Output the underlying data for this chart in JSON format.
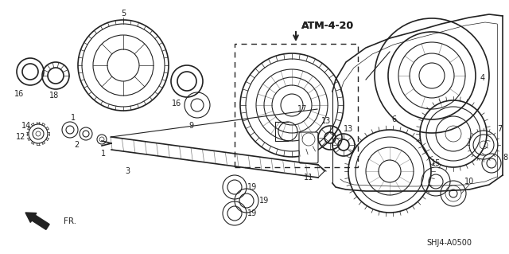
{
  "background_color": "#ffffff",
  "line_color": "#222222",
  "figsize": [
    6.4,
    3.19
  ],
  "dpi": 100,
  "atm_label": "ATM-4-20",
  "diagram_code": "SHJ4-A0500",
  "fr_label": "FR."
}
